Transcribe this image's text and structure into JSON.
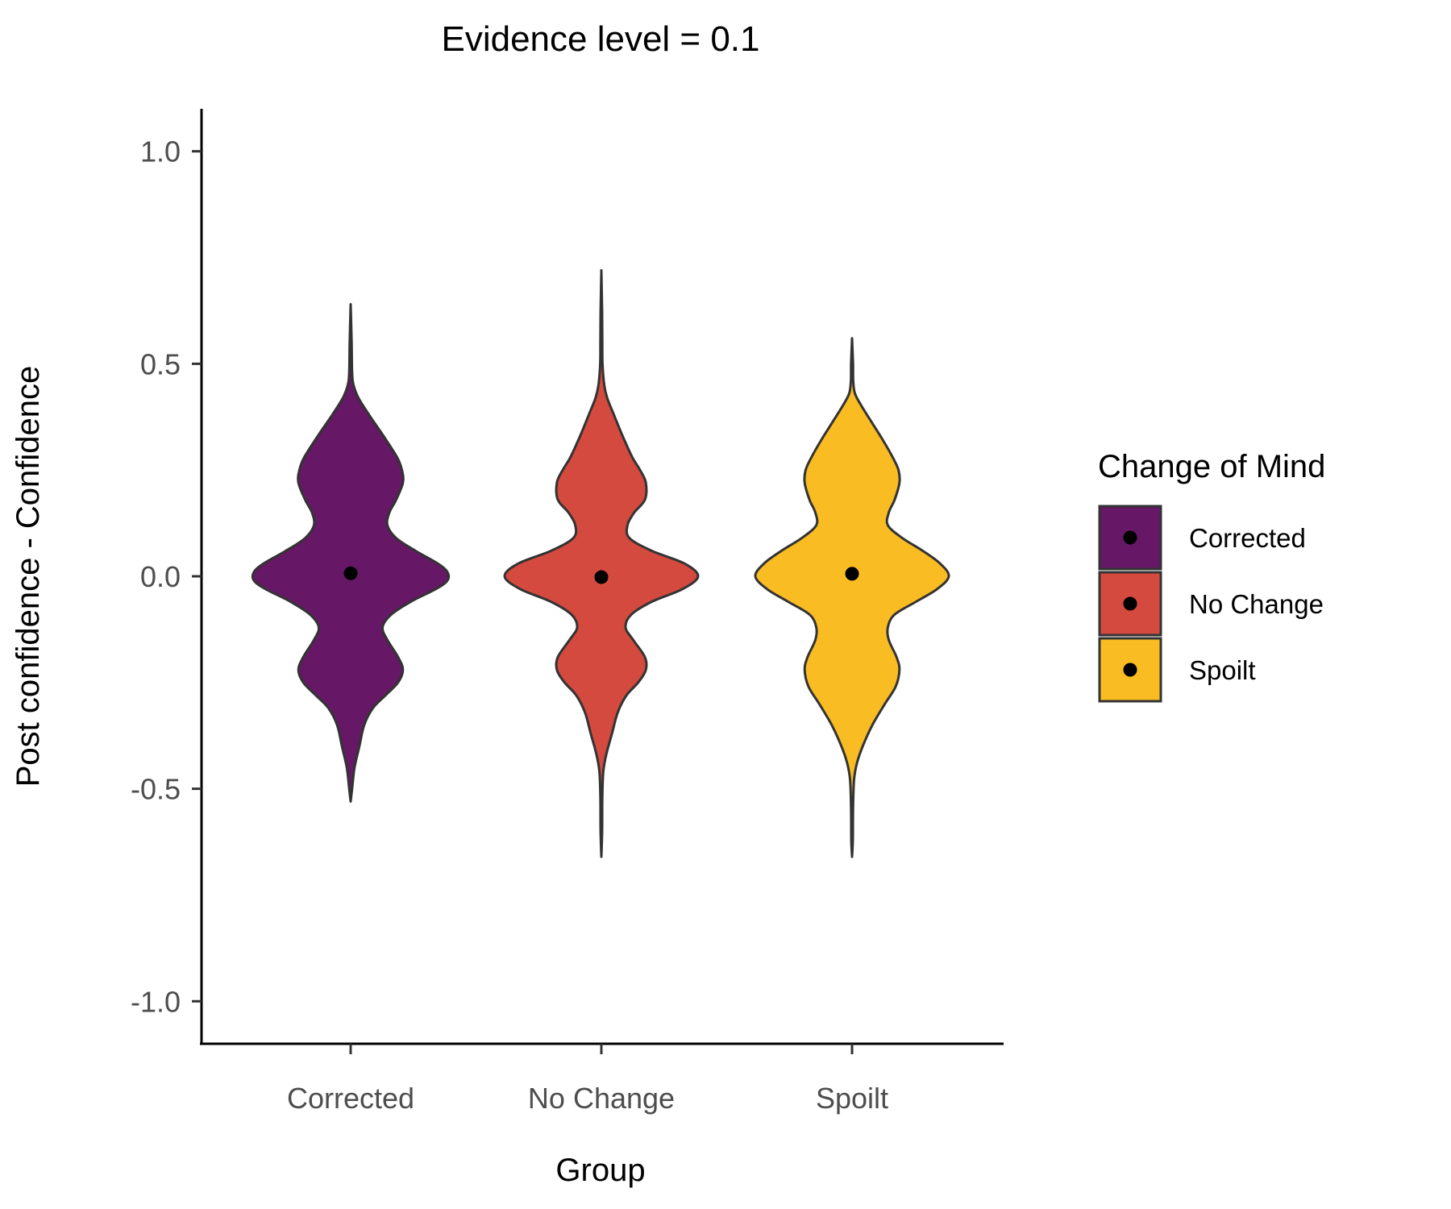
{
  "chart_data": {
    "type": "violin",
    "title": "Evidence level = 0.1",
    "xlabel": "Group",
    "ylabel": "Post confidence - Confidence",
    "ylim": [
      -1.1,
      1.1
    ],
    "y_ticks": [
      "1.0",
      "0.5",
      "0.0",
      "-0.5",
      "-1.0"
    ],
    "y_tick_values": [
      1.0,
      0.5,
      0.0,
      -0.5,
      -1.0
    ],
    "categories": [
      "Corrected",
      "No Change",
      "Spoilt"
    ],
    "grid": false,
    "legend": {
      "title": "Change of Mind",
      "position": "right",
      "entries": [
        "Corrected",
        "No Change",
        "Spoilt"
      ]
    },
    "series": [
      {
        "category": "Corrected",
        "color": "#661866",
        "mean": 0.007,
        "min": -0.53,
        "max": 0.64,
        "density_profile": [
          [
            0.64,
            0.0
          ],
          [
            0.55,
            0.01
          ],
          [
            0.48,
            0.015
          ],
          [
            0.45,
            0.03
          ],
          [
            0.42,
            0.08
          ],
          [
            0.38,
            0.19
          ],
          [
            0.33,
            0.34
          ],
          [
            0.28,
            0.48
          ],
          [
            0.25,
            0.53
          ],
          [
            0.22,
            0.54
          ],
          [
            0.18,
            0.47
          ],
          [
            0.15,
            0.4
          ],
          [
            0.12,
            0.38
          ],
          [
            0.09,
            0.47
          ],
          [
            0.06,
            0.67
          ],
          [
            0.03,
            0.9
          ],
          [
            0.01,
            1.0
          ],
          [
            -0.01,
            1.0
          ],
          [
            -0.03,
            0.88
          ],
          [
            -0.06,
            0.62
          ],
          [
            -0.09,
            0.42
          ],
          [
            -0.12,
            0.33
          ],
          [
            -0.15,
            0.38
          ],
          [
            -0.19,
            0.49
          ],
          [
            -0.22,
            0.54
          ],
          [
            -0.25,
            0.49
          ],
          [
            -0.28,
            0.36
          ],
          [
            -0.31,
            0.23
          ],
          [
            -0.35,
            0.14
          ],
          [
            -0.4,
            0.09
          ],
          [
            -0.45,
            0.04
          ],
          [
            -0.5,
            0.015
          ],
          [
            -0.53,
            0.0
          ]
        ]
      },
      {
        "category": "No Change",
        "color": "#d44a3f",
        "mean": -0.002,
        "min": -0.66,
        "max": 0.72,
        "density_profile": [
          [
            0.72,
            0.0
          ],
          [
            0.62,
            0.008
          ],
          [
            0.55,
            0.01
          ],
          [
            0.5,
            0.012
          ],
          [
            0.45,
            0.03
          ],
          [
            0.42,
            0.06
          ],
          [
            0.38,
            0.13
          ],
          [
            0.33,
            0.22
          ],
          [
            0.28,
            0.32
          ],
          [
            0.25,
            0.4
          ],
          [
            0.22,
            0.46
          ],
          [
            0.18,
            0.45
          ],
          [
            0.15,
            0.34
          ],
          [
            0.12,
            0.27
          ],
          [
            0.09,
            0.29
          ],
          [
            0.06,
            0.52
          ],
          [
            0.03,
            0.86
          ],
          [
            0.0,
            1.0
          ],
          [
            -0.03,
            0.84
          ],
          [
            -0.06,
            0.52
          ],
          [
            -0.09,
            0.31
          ],
          [
            -0.12,
            0.25
          ],
          [
            -0.15,
            0.33
          ],
          [
            -0.19,
            0.45
          ],
          [
            -0.22,
            0.46
          ],
          [
            -0.25,
            0.38
          ],
          [
            -0.28,
            0.26
          ],
          [
            -0.32,
            0.17
          ],
          [
            -0.37,
            0.11
          ],
          [
            -0.42,
            0.05
          ],
          [
            -0.46,
            0.02
          ],
          [
            -0.52,
            0.01
          ],
          [
            -0.6,
            0.008
          ],
          [
            -0.66,
            0.0
          ]
        ]
      },
      {
        "category": "Spoilt",
        "color": "#f9bc22",
        "mean": 0.006,
        "min": -0.66,
        "max": 0.56,
        "density_profile": [
          [
            0.56,
            0.0
          ],
          [
            0.5,
            0.01
          ],
          [
            0.46,
            0.012
          ],
          [
            0.43,
            0.03
          ],
          [
            0.4,
            0.1
          ],
          [
            0.36,
            0.21
          ],
          [
            0.32,
            0.32
          ],
          [
            0.28,
            0.42
          ],
          [
            0.25,
            0.48
          ],
          [
            0.22,
            0.49
          ],
          [
            0.18,
            0.44
          ],
          [
            0.15,
            0.38
          ],
          [
            0.12,
            0.37
          ],
          [
            0.09,
            0.52
          ],
          [
            0.06,
            0.73
          ],
          [
            0.03,
            0.91
          ],
          [
            0.0,
            1.0
          ],
          [
            -0.03,
            0.88
          ],
          [
            -0.06,
            0.66
          ],
          [
            -0.09,
            0.44
          ],
          [
            -0.12,
            0.37
          ],
          [
            -0.15,
            0.38
          ],
          [
            -0.19,
            0.46
          ],
          [
            -0.22,
            0.49
          ],
          [
            -0.26,
            0.45
          ],
          [
            -0.3,
            0.34
          ],
          [
            -0.35,
            0.21
          ],
          [
            -0.4,
            0.11
          ],
          [
            -0.44,
            0.05
          ],
          [
            -0.48,
            0.02
          ],
          [
            -0.55,
            0.01
          ],
          [
            -0.62,
            0.008
          ],
          [
            -0.66,
            0.0
          ]
        ]
      }
    ]
  }
}
